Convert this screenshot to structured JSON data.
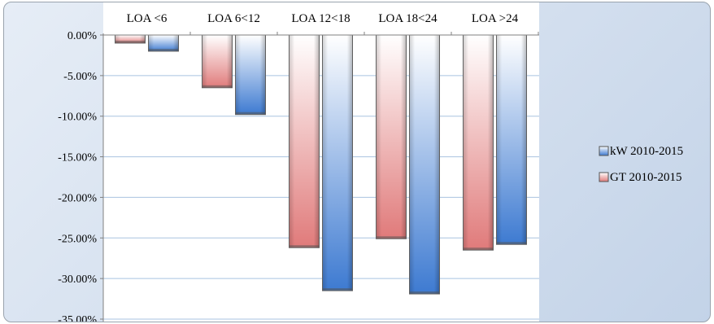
{
  "chart_data": {
    "type": "bar",
    "categories": [
      "LOA <6",
      "LOA 6<12",
      "LOA 12<18",
      "LOA 18<24",
      "LOA >24"
    ],
    "series": [
      {
        "name": "GT 2010-2015",
        "values": [
          -1.0,
          -6.5,
          -26.2,
          -25.1,
          -26.5
        ],
        "color": "#e07a7a"
      },
      {
        "name": "kW 2010-2015",
        "values": [
          -2.0,
          -9.8,
          -31.5,
          -31.9,
          -25.8
        ],
        "color": "#3d7ad1"
      }
    ],
    "legend_order": [
      "kW 2010-2015",
      "GT 2010-2015"
    ],
    "y_ticks": [
      "0.00%",
      "-5.00%",
      "-10.00%",
      "-15.00%",
      "-20.00%",
      "-25.00%",
      "-30.00%",
      "-35.00%"
    ],
    "ylim": [
      -35,
      0
    ],
    "y_unit": "%",
    "category_axis_position": "top",
    "grid": true,
    "legend_position": "right",
    "colors": {
      "plot_background": "#ffffff",
      "gridline": "#a9c3e0",
      "frame": "#c3d3e8"
    }
  }
}
